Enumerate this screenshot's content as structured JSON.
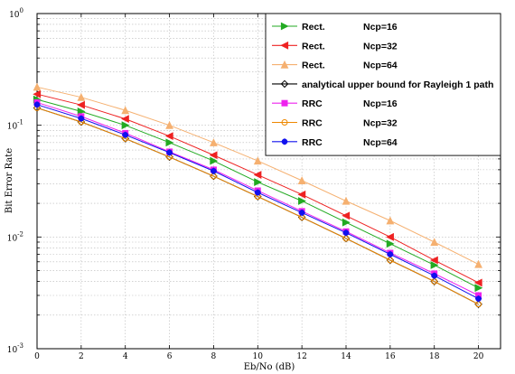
{
  "chart_data": {
    "type": "line",
    "xlabel": "Eb/No (dB)",
    "ylabel": "Bit Error Rate",
    "xlim": [
      0,
      21
    ],
    "ylim": [
      0.001,
      1
    ],
    "yscale": "log",
    "grid": true,
    "legend_position": "top-right",
    "x": [
      0,
      2,
      4,
      6,
      8,
      10,
      12,
      14,
      16,
      18,
      20
    ],
    "x_ticks": [
      "0",
      "2",
      "4",
      "6",
      "8",
      "10",
      "12",
      "14",
      "16",
      "18",
      "20"
    ],
    "y_ticks": [
      {
        "base": "10",
        "exp": "0"
      },
      {
        "base": "10",
        "exp": "-1"
      },
      {
        "base": "10",
        "exp": "-2"
      },
      {
        "base": "10",
        "exp": "-3"
      }
    ],
    "series": [
      {
        "legend_name": "Rect.",
        "legend_param": "Ncp=16",
        "color": "#22aa22",
        "marker": "triangle-right",
        "values": [
          0.17,
          0.133,
          0.1,
          0.07,
          0.048,
          0.031,
          0.021,
          0.0135,
          0.0087,
          0.0056,
          0.0035
        ]
      },
      {
        "legend_name": "Rect.",
        "legend_param": "Ncp=32",
        "color": "#ee2222",
        "marker": "triangle-left",
        "values": [
          0.19,
          0.152,
          0.114,
          0.08,
          0.054,
          0.036,
          0.024,
          0.0155,
          0.01,
          0.0062,
          0.0039
        ]
      },
      {
        "legend_name": "Rect.",
        "legend_param": "Ncp=64",
        "color": "#f5b070",
        "marker": "triangle-up",
        "values": [
          0.22,
          0.178,
          0.136,
          0.1,
          0.07,
          0.048,
          0.032,
          0.021,
          0.014,
          0.009,
          0.0057
        ]
      },
      {
        "legend_name": "analytical upper bound for Rayleigh 1 path",
        "legend_param": "",
        "color": "#000000",
        "marker": "diamond",
        "values": [
          0.143,
          0.107,
          0.076,
          0.052,
          0.035,
          0.023,
          0.015,
          0.0097,
          0.0062,
          0.004,
          0.0025
        ]
      },
      {
        "legend_name": "RRC",
        "legend_param": "Ncp=16",
        "color": "#ee22ee",
        "marker": "square",
        "values": [
          0.16,
          0.12,
          0.085,
          0.058,
          0.04,
          0.026,
          0.017,
          0.0112,
          0.0072,
          0.0047,
          0.003
        ]
      },
      {
        "legend_name": "RRC",
        "legend_param": "Ncp=32",
        "color": "#ee8800",
        "marker": "circle",
        "values": [
          0.143,
          0.107,
          0.076,
          0.052,
          0.035,
          0.023,
          0.015,
          0.0097,
          0.0062,
          0.004,
          0.0025
        ]
      },
      {
        "legend_name": "RRC",
        "legend_param": "Ncp=64",
        "color": "#1111ee",
        "marker": "star",
        "values": [
          0.153,
          0.115,
          0.082,
          0.057,
          0.039,
          0.025,
          0.0165,
          0.0109,
          0.007,
          0.0045,
          0.0028
        ]
      }
    ]
  }
}
